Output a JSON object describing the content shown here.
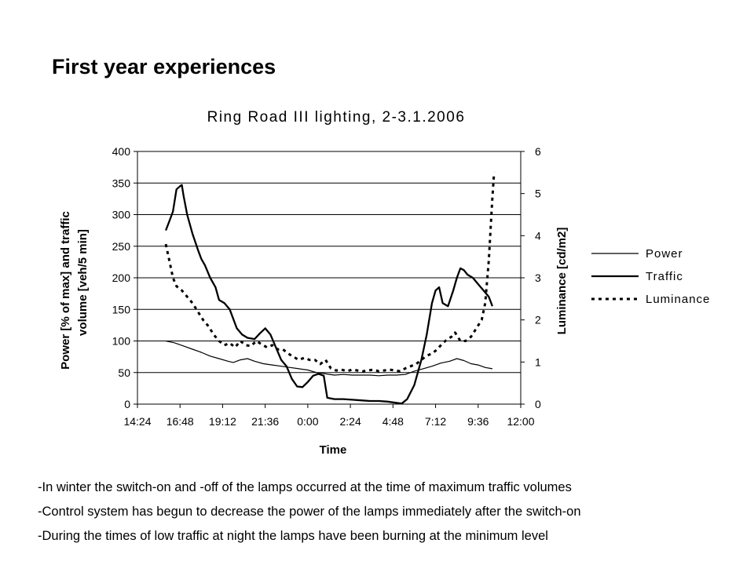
{
  "slide": {
    "title": "First year experiences",
    "bullets": [
      "-In winter the switch-on and -off of the lamps occurred at the time of maximum traffic volumes",
      "-Control system has begun to decrease the power of the lamps immediately after the switch-on",
      "-During the times of low traffic at night the lamps have been burning at the minimum level"
    ]
  },
  "chart_data": {
    "type": "line",
    "title": "Ring Road III  lighting,  2-3.1.2006",
    "xlabel": "Time",
    "ylabel_line1": "Power [% of max] and traffic",
    "ylabel_line2": "volume [veh/5 min]",
    "y2label": "Luminance [cd/m2]",
    "x_ticks": [
      "14:24",
      "16:48",
      "19:12",
      "21:36",
      "0:00",
      "2:24",
      "4:48",
      "7:12",
      "9:36",
      "12:00"
    ],
    "xlim_hours": [
      14.4,
      36.0
    ],
    "ylim": [
      0,
      400
    ],
    "y_ticks": [
      0,
      50,
      100,
      150,
      200,
      250,
      300,
      350,
      400
    ],
    "y2lim": [
      0,
      6
    ],
    "y2_ticks": [
      0,
      1,
      2,
      3,
      4,
      5,
      6
    ],
    "grid": "horizontal",
    "legend_position": "right",
    "series": [
      {
        "name": "Power",
        "axis": "left",
        "style": "thin",
        "points": [
          [
            16.0,
            100
          ],
          [
            16.5,
            97
          ],
          [
            17.0,
            92
          ],
          [
            17.5,
            87
          ],
          [
            18.0,
            82
          ],
          [
            18.5,
            76
          ],
          [
            19.0,
            72
          ],
          [
            19.5,
            68
          ],
          [
            19.8,
            66
          ],
          [
            20.2,
            70
          ],
          [
            20.6,
            72
          ],
          [
            21.0,
            68
          ],
          [
            21.5,
            64
          ],
          [
            22.0,
            62
          ],
          [
            22.5,
            60
          ],
          [
            23.0,
            58
          ],
          [
            23.5,
            56
          ],
          [
            24.0,
            54
          ],
          [
            24.5,
            50
          ],
          [
            25.0,
            48
          ],
          [
            25.5,
            46
          ],
          [
            26.0,
            47
          ],
          [
            26.5,
            46
          ],
          [
            27.0,
            46
          ],
          [
            27.5,
            46
          ],
          [
            28.0,
            45
          ],
          [
            28.5,
            46
          ],
          [
            29.0,
            46
          ],
          [
            29.5,
            47
          ],
          [
            30.0,
            52
          ],
          [
            30.5,
            56
          ],
          [
            31.0,
            60
          ],
          [
            31.5,
            65
          ],
          [
            32.0,
            68
          ],
          [
            32.4,
            72
          ],
          [
            32.8,
            69
          ],
          [
            33.2,
            64
          ],
          [
            33.6,
            62
          ],
          [
            34.0,
            58
          ],
          [
            34.4,
            56
          ]
        ]
      },
      {
        "name": "Traffic",
        "axis": "left",
        "style": "thick",
        "points": [
          [
            16.0,
            275
          ],
          [
            16.2,
            290
          ],
          [
            16.4,
            305
          ],
          [
            16.6,
            340
          ],
          [
            16.8,
            345
          ],
          [
            16.9,
            347
          ],
          [
            17.0,
            330
          ],
          [
            17.2,
            300
          ],
          [
            17.5,
            270
          ],
          [
            17.8,
            245
          ],
          [
            18.0,
            230
          ],
          [
            18.2,
            220
          ],
          [
            18.5,
            200
          ],
          [
            18.8,
            185
          ],
          [
            19.0,
            165
          ],
          [
            19.3,
            160
          ],
          [
            19.6,
            150
          ],
          [
            19.8,
            135
          ],
          [
            20.0,
            120
          ],
          [
            20.3,
            110
          ],
          [
            20.6,
            105
          ],
          [
            21.0,
            103
          ],
          [
            21.3,
            112
          ],
          [
            21.6,
            120
          ],
          [
            21.9,
            110
          ],
          [
            22.2,
            90
          ],
          [
            22.5,
            70
          ],
          [
            22.8,
            60
          ],
          [
            23.1,
            40
          ],
          [
            23.4,
            28
          ],
          [
            23.7,
            27
          ],
          [
            24.0,
            35
          ],
          [
            24.3,
            45
          ],
          [
            24.6,
            48
          ],
          [
            24.9,
            45
          ],
          [
            25.1,
            10
          ],
          [
            25.5,
            8
          ],
          [
            26.0,
            8
          ],
          [
            26.5,
            7
          ],
          [
            27.0,
            6
          ],
          [
            27.5,
            5
          ],
          [
            28.0,
            5
          ],
          [
            28.5,
            4
          ],
          [
            29.0,
            2
          ],
          [
            29.3,
            1
          ],
          [
            29.6,
            8
          ],
          [
            30.0,
            30
          ],
          [
            30.4,
            70
          ],
          [
            30.7,
            110
          ],
          [
            31.0,
            160
          ],
          [
            31.2,
            180
          ],
          [
            31.4,
            185
          ],
          [
            31.6,
            160
          ],
          [
            31.9,
            155
          ],
          [
            32.2,
            180
          ],
          [
            32.4,
            200
          ],
          [
            32.6,
            215
          ],
          [
            32.8,
            212
          ],
          [
            33.0,
            205
          ],
          [
            33.3,
            200
          ],
          [
            33.6,
            190
          ],
          [
            33.9,
            180
          ],
          [
            34.2,
            170
          ],
          [
            34.4,
            155
          ]
        ]
      },
      {
        "name": "Luminance",
        "axis": "right",
        "style": "dashed",
        "points": [
          [
            16.0,
            3.8
          ],
          [
            16.2,
            3.4
          ],
          [
            16.4,
            3.0
          ],
          [
            16.6,
            2.8
          ],
          [
            16.9,
            2.7
          ],
          [
            17.2,
            2.55
          ],
          [
            17.5,
            2.4
          ],
          [
            17.8,
            2.2
          ],
          [
            18.1,
            2.0
          ],
          [
            18.4,
            1.85
          ],
          [
            18.7,
            1.65
          ],
          [
            19.0,
            1.5
          ],
          [
            19.3,
            1.4
          ],
          [
            19.6,
            1.45
          ],
          [
            19.9,
            1.35
          ],
          [
            20.2,
            1.5
          ],
          [
            20.5,
            1.4
          ],
          [
            20.8,
            1.38
          ],
          [
            21.1,
            1.5
          ],
          [
            21.4,
            1.42
          ],
          [
            21.7,
            1.35
          ],
          [
            22.0,
            1.4
          ],
          [
            22.3,
            1.3
          ],
          [
            22.6,
            1.3
          ],
          [
            22.9,
            1.2
          ],
          [
            23.2,
            1.12
          ],
          [
            23.5,
            1.05
          ],
          [
            23.8,
            1.1
          ],
          [
            24.1,
            1.05
          ],
          [
            24.4,
            1.05
          ],
          [
            24.7,
            0.95
          ],
          [
            25.0,
            1.05
          ],
          [
            25.3,
            0.85
          ],
          [
            25.6,
            0.8
          ],
          [
            25.9,
            0.82
          ],
          [
            26.2,
            0.78
          ],
          [
            26.5,
            0.82
          ],
          [
            26.8,
            0.8
          ],
          [
            27.1,
            0.78
          ],
          [
            27.4,
            0.8
          ],
          [
            27.7,
            0.82
          ],
          [
            28.0,
            0.78
          ],
          [
            28.3,
            0.8
          ],
          [
            28.6,
            0.82
          ],
          [
            28.9,
            0.8
          ],
          [
            29.2,
            0.78
          ],
          [
            29.5,
            0.85
          ],
          [
            29.8,
            0.9
          ],
          [
            30.1,
            0.95
          ],
          [
            30.4,
            1.05
          ],
          [
            30.7,
            1.15
          ],
          [
            31.0,
            1.2
          ],
          [
            31.3,
            1.3
          ],
          [
            31.6,
            1.45
          ],
          [
            31.9,
            1.55
          ],
          [
            32.1,
            1.6
          ],
          [
            32.3,
            1.7
          ],
          [
            32.6,
            1.5
          ],
          [
            32.9,
            1.5
          ],
          [
            33.2,
            1.6
          ],
          [
            33.5,
            1.8
          ],
          [
            33.8,
            2.0
          ],
          [
            34.0,
            2.4
          ],
          [
            34.2,
            3.4
          ],
          [
            34.4,
            4.9
          ],
          [
            34.5,
            5.5
          ]
        ]
      }
    ]
  }
}
